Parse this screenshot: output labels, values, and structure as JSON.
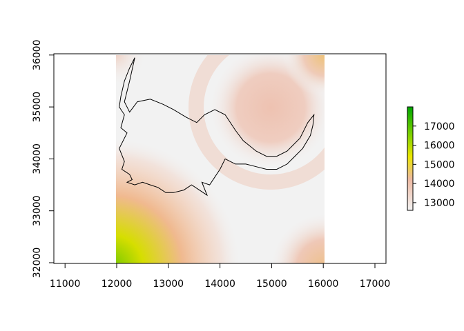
{
  "chart_data": {
    "type": "heatmap",
    "title": "",
    "xlabel": "",
    "ylabel": "",
    "xlim": [
      10800,
      17200
    ],
    "ylim": [
      32000,
      36100
    ],
    "x_ticks": [
      "11000",
      "12000",
      "13000",
      "14000",
      "15000",
      "16000",
      "17000"
    ],
    "y_ticks": [
      "32000",
      "33000",
      "34000",
      "35000",
      "36000"
    ],
    "raster_extent": {
      "x": [
        12000,
        16050
      ],
      "y": [
        32000,
        36050
      ]
    },
    "value_range": [
      12600,
      18000
    ],
    "raster_features": [
      {
        "label": "low value background",
        "value": 12750
      },
      {
        "label": "circular peak",
        "center": [
          15000,
          35000
        ],
        "value": 13700
      },
      {
        "label": "ring around peak",
        "center": [
          15000,
          35000
        ],
        "radius": 1300,
        "value": 13400
      },
      {
        "label": "bottom-left high corner",
        "center": [
          12000,
          32000
        ],
        "value": 17500
      },
      {
        "label": "bottom-right corner",
        "center": [
          16050,
          32000
        ],
        "value": 14000
      },
      {
        "label": "top-right corner",
        "center": [
          16050,
          36050
        ],
        "value": 14500
      }
    ],
    "outline_polygon": [
      [
        12350,
        35950
      ],
      [
        12250,
        35750
      ],
      [
        12150,
        35500
      ],
      [
        12080,
        35200
      ],
      [
        12050,
        35000
      ],
      [
        12150,
        34850
      ],
      [
        12080,
        34600
      ],
      [
        12200,
        34500
      ],
      [
        12050,
        34200
      ],
      [
        12150,
        33950
      ],
      [
        12100,
        33800
      ],
      [
        12250,
        33700
      ],
      [
        12300,
        33600
      ],
      [
        12200,
        33550
      ],
      [
        12350,
        33500
      ],
      [
        12500,
        33550
      ],
      [
        12650,
        33500
      ],
      [
        12800,
        33450
      ],
      [
        12950,
        33350
      ],
      [
        13100,
        33350
      ],
      [
        13300,
        33400
      ],
      [
        13450,
        33500
      ],
      [
        13600,
        33400
      ],
      [
        13750,
        33300
      ],
      [
        13650,
        33550
      ],
      [
        13800,
        33500
      ],
      [
        13900,
        33650
      ],
      [
        14000,
        33800
      ],
      [
        14100,
        34000
      ],
      [
        14300,
        33900
      ],
      [
        14500,
        33900
      ],
      [
        14700,
        33850
      ],
      [
        14900,
        33800
      ],
      [
        15100,
        33800
      ],
      [
        15300,
        33900
      ],
      [
        15450,
        34050
      ],
      [
        15600,
        34200
      ],
      [
        15750,
        34450
      ],
      [
        15800,
        34650
      ],
      [
        15820,
        34850
      ],
      [
        15700,
        34700
      ],
      [
        15550,
        34400
      ],
      [
        15300,
        34150
      ],
      [
        15100,
        34050
      ],
      [
        14900,
        34050
      ],
      [
        14700,
        34150
      ],
      [
        14450,
        34350
      ],
      [
        14300,
        34550
      ],
      [
        14100,
        34850
      ],
      [
        13900,
        34950
      ],
      [
        13700,
        34850
      ],
      [
        13550,
        34700
      ],
      [
        13350,
        34800
      ],
      [
        13100,
        34950
      ],
      [
        12900,
        35050
      ],
      [
        12650,
        35150
      ],
      [
        12400,
        35100
      ],
      [
        12250,
        34900
      ],
      [
        12150,
        35100
      ],
      [
        12250,
        35500
      ],
      [
        12350,
        35950
      ]
    ],
    "legend": {
      "position": "right",
      "ticks": [
        "13000",
        "14000",
        "15000",
        "16000",
        "17000"
      ],
      "colors": [
        "#F2F2F2",
        "#EDB9A2",
        "#EBE600",
        "#75CE00",
        "#00A600"
      ]
    }
  }
}
